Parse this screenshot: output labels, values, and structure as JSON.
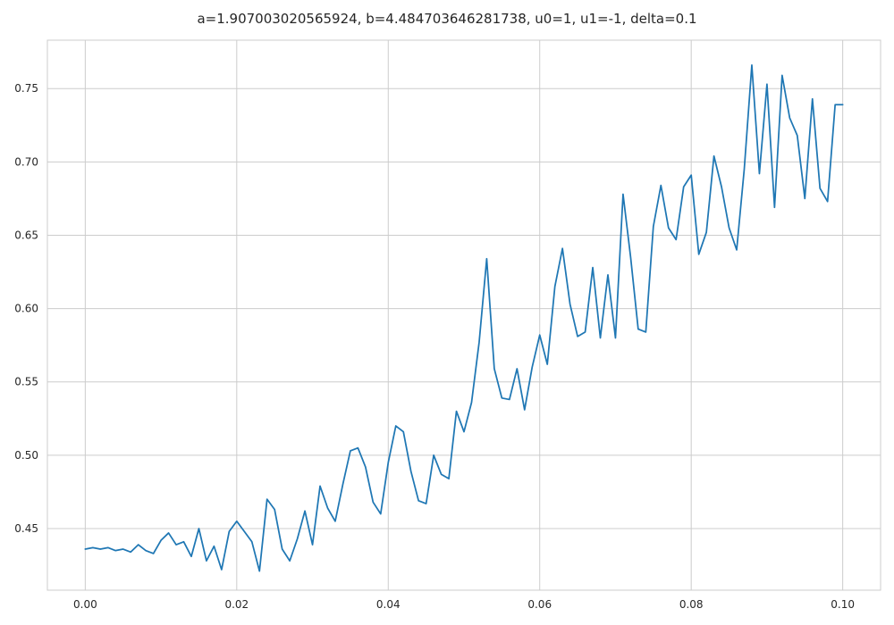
{
  "chart_data": {
    "type": "line",
    "title": "a=1.907003020565924, b=4.484703646281738, u0=1, u1=-1, delta=0.1",
    "xlabel": "",
    "ylabel": "",
    "xlim": [
      -0.005,
      0.105
    ],
    "ylim": [
      0.408,
      0.783
    ],
    "grid": true,
    "legend": "none",
    "line_color": "#1f77b4",
    "xticks": [
      0.0,
      0.02,
      0.04,
      0.06,
      0.08,
      0.1
    ],
    "xtick_labels": [
      "0.00",
      "0.02",
      "0.04",
      "0.06",
      "0.08",
      "0.10"
    ],
    "yticks": [
      0.45,
      0.5,
      0.55,
      0.6,
      0.65,
      0.7,
      0.75
    ],
    "ytick_labels": [
      "0.45",
      "0.50",
      "0.55",
      "0.60",
      "0.65",
      "0.70",
      "0.75"
    ],
    "series": [
      {
        "x": [
          0.0,
          0.001,
          0.002,
          0.003,
          0.004,
          0.005,
          0.006,
          0.007,
          0.008,
          0.009,
          0.01,
          0.011,
          0.012,
          0.013,
          0.014,
          0.015,
          0.016,
          0.017,
          0.018,
          0.019,
          0.02,
          0.021,
          0.022,
          0.023,
          0.024,
          0.025,
          0.026,
          0.027,
          0.028,
          0.029,
          0.03,
          0.031,
          0.032,
          0.033,
          0.034,
          0.035,
          0.036,
          0.037,
          0.038,
          0.039,
          0.04,
          0.041,
          0.042,
          0.043,
          0.044,
          0.045,
          0.046,
          0.047,
          0.048,
          0.049,
          0.05,
          0.051,
          0.052,
          0.053,
          0.054,
          0.055,
          0.056,
          0.057,
          0.058,
          0.059,
          0.06,
          0.061,
          0.062,
          0.063,
          0.064,
          0.065,
          0.066,
          0.067,
          0.068,
          0.069,
          0.07,
          0.071,
          0.072,
          0.073,
          0.074,
          0.075,
          0.076,
          0.077,
          0.078,
          0.079,
          0.08,
          0.081,
          0.082,
          0.083,
          0.084,
          0.085,
          0.086,
          0.087,
          0.088,
          0.089,
          0.09,
          0.091,
          0.092,
          0.093,
          0.094,
          0.095,
          0.096,
          0.097,
          0.098,
          0.099,
          0.1
        ],
        "y": [
          0.436,
          0.437,
          0.436,
          0.437,
          0.435,
          0.436,
          0.434,
          0.439,
          0.435,
          0.433,
          0.442,
          0.447,
          0.439,
          0.441,
          0.431,
          0.45,
          0.428,
          0.438,
          0.422,
          0.448,
          0.455,
          0.448,
          0.441,
          0.421,
          0.47,
          0.463,
          0.436,
          0.428,
          0.443,
          0.462,
          0.439,
          0.479,
          0.464,
          0.455,
          0.48,
          0.503,
          0.505,
          0.492,
          0.468,
          0.46,
          0.495,
          0.52,
          0.516,
          0.489,
          0.469,
          0.467,
          0.5,
          0.487,
          0.484,
          0.53,
          0.516,
          0.536,
          0.577,
          0.634,
          0.559,
          0.539,
          0.538,
          0.559,
          0.531,
          0.56,
          0.582,
          0.562,
          0.615,
          0.641,
          0.603,
          0.581,
          0.584,
          0.628,
          0.58,
          0.623,
          0.58,
          0.678,
          0.635,
          0.586,
          0.584,
          0.656,
          0.684,
          0.655,
          0.647,
          0.683,
          0.691,
          0.637,
          0.652,
          0.704,
          0.683,
          0.655,
          0.64,
          0.695,
          0.766,
          0.692,
          0.753,
          0.669,
          0.759,
          0.73,
          0.718,
          0.675,
          0.743,
          0.682,
          0.673,
          0.739,
          0.739
        ]
      }
    ]
  }
}
